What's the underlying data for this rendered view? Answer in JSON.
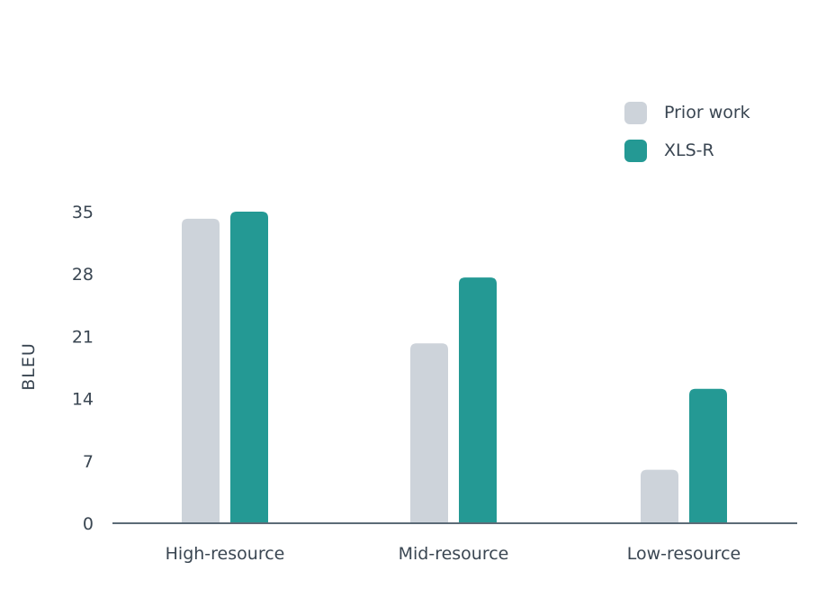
{
  "chart_data": {
    "type": "bar",
    "ylabel": "BLEU",
    "categories": [
      "High-resource",
      "Mid-resource",
      "Low-resource"
    ],
    "series": [
      {
        "name": "Prior work",
        "color": "#cdd3da",
        "values": [
          34.2,
          20.2,
          6.0
        ]
      },
      {
        "name": "XLS-R",
        "color": "#249994",
        "values": [
          35.0,
          27.6,
          15.1
        ]
      }
    ],
    "ylim": [
      0,
      35
    ],
    "yticks": [
      0,
      7,
      14,
      21,
      28,
      35
    ],
    "legend_position": "top-right",
    "grid": false,
    "axis_color": "#5c6b77"
  }
}
